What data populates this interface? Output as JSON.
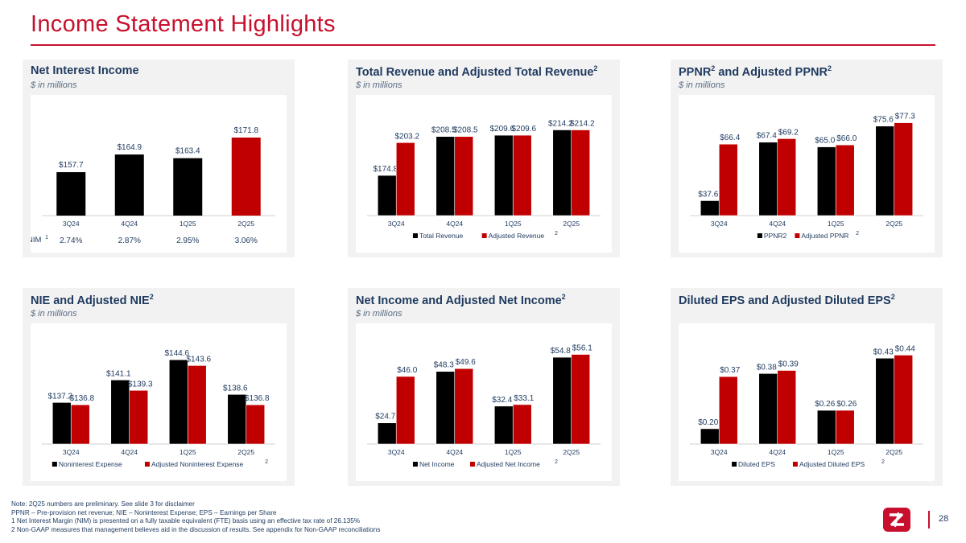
{
  "page": {
    "title": "Income Statement Highlights",
    "page_number": "28",
    "colors": {
      "accent": "#c8102e",
      "navy": "#1f3a5f",
      "black": "#000000",
      "red": "#c00000"
    }
  },
  "panels": [
    {
      "title": "Net Interest Income",
      "sup": "",
      "subtitle": "$ in millions"
    },
    {
      "title": "Total Revenue and Adjusted Total Revenue",
      "sup": "2",
      "subtitle": "$ in millions"
    },
    {
      "title": "PPNR",
      "sup": "2",
      "title_rest": " and Adjusted PPNR",
      "sup2": "2",
      "subtitle": "$ in millions"
    },
    {
      "title": "NIE and Adjusted NIE",
      "sup": "2",
      "subtitle": "$ in millions"
    },
    {
      "title": "Net Income and Adjusted Net Income",
      "sup": "2",
      "subtitle": "$ in millions"
    },
    {
      "title": "Diluted EPS and Adjusted Diluted EPS",
      "sup": "2",
      "subtitle": ""
    }
  ],
  "chart_data": [
    {
      "type": "bar",
      "categories": [
        "3Q24",
        "4Q24",
        "1Q25",
        "2Q25"
      ],
      "series": [
        {
          "name": "Net Interest Income",
          "values": [
            157.7,
            164.9,
            163.4,
            171.8
          ],
          "labels": [
            "$157.7",
            "$164.9",
            "$163.4",
            "$171.8"
          ],
          "colors": [
            "#000000",
            "#000000",
            "#000000",
            "#c00000"
          ]
        }
      ],
      "ylim": [
        140,
        180
      ],
      "nim_label": "NIM",
      "nim_sup": "1",
      "nim_values": [
        "2.74%",
        "2.87%",
        "2.95%",
        "3.06%"
      ],
      "legend": []
    },
    {
      "type": "bar",
      "categories": [
        "3Q24",
        "4Q24",
        "1Q25",
        "2Q25"
      ],
      "series": [
        {
          "name": "Total Revenue",
          "values": [
            174.8,
            208.5,
            209.6,
            214.2
          ],
          "labels": [
            "$174.8",
            "$208.5",
            "$209.6",
            "$214.2"
          ]
        },
        {
          "name": "Adjusted Revenue",
          "values": [
            203.2,
            208.5,
            209.6,
            214.2
          ],
          "labels": [
            "$203.2",
            "$208.5",
            "$209.6",
            "$214.2"
          ]
        }
      ],
      "ylim": [
        140,
        225
      ],
      "legend": [
        "Total Revenue",
        "Adjusted Revenue"
      ],
      "legend_sup": "2"
    },
    {
      "type": "bar",
      "categories": [
        "3Q24",
        "4Q24",
        "1Q25",
        "2Q25"
      ],
      "series": [
        {
          "name": "PPNR2",
          "values": [
            37.6,
            67.4,
            65.0,
            75.6
          ],
          "labels": [
            "$37.6",
            "$67.4",
            "$65.0",
            "$75.6"
          ]
        },
        {
          "name": "Adjusted PPNR",
          "values": [
            66.4,
            69.2,
            66.0,
            77.3
          ],
          "labels": [
            "$66.4",
            "$69.2",
            "$66.0",
            "$77.3"
          ]
        }
      ],
      "ylim": [
        30,
        80
      ],
      "legend": [
        "PPNR2",
        "Adjusted PPNR"
      ],
      "legend_sup": "2"
    },
    {
      "type": "bar",
      "categories": [
        "3Q24",
        "4Q24",
        "1Q25",
        "2Q25"
      ],
      "series": [
        {
          "name": "Noninterest Expense",
          "values": [
            137.2,
            141.1,
            144.6,
            138.6
          ],
          "labels": [
            "$137.2",
            "$141.1",
            "$144.6",
            "$138.6"
          ]
        },
        {
          "name": "Adjusted Noninterest Expense",
          "values": [
            136.8,
            139.3,
            143.6,
            136.8
          ],
          "labels": [
            "$136.8",
            "$139.3",
            "$143.6",
            "$136.8"
          ]
        }
      ],
      "ylim": [
        130,
        147
      ],
      "legend": [
        "Noninterest Expense",
        "Adjusted Noninterest Expense"
      ],
      "legend_sup": "2"
    },
    {
      "type": "bar",
      "categories": [
        "3Q24",
        "4Q24",
        "1Q25",
        "2Q25"
      ],
      "series": [
        {
          "name": "Net Income",
          "values": [
            24.7,
            48.3,
            32.4,
            54.8
          ],
          "labels": [
            "$24.7",
            "$48.3",
            "$32.4",
            "$54.8"
          ]
        },
        {
          "name": "Adjusted Net Income",
          "values": [
            46.0,
            49.6,
            33.1,
            56.1
          ],
          "labels": [
            "$46.0",
            "$49.6",
            "$33.1",
            "$56.1"
          ]
        }
      ],
      "ylim": [
        15,
        60
      ],
      "legend": [
        "Net Income",
        "Adjusted Net Income"
      ],
      "legend_sup": "2"
    },
    {
      "type": "bar",
      "categories": [
        "3Q24",
        "4Q24",
        "1Q25",
        "2Q25"
      ],
      "series": [
        {
          "name": "Diluted EPS",
          "values": [
            0.2,
            0.38,
            0.26,
            0.43
          ],
          "labels": [
            "$0.20",
            "$0.38",
            "$0.26",
            "$0.43"
          ]
        },
        {
          "name": "Adjusted Diluted EPS",
          "values": [
            0.37,
            0.39,
            0.26,
            0.44
          ],
          "labels": [
            "$0.37",
            "$0.39",
            "$0.26",
            "$0.44"
          ]
        }
      ],
      "ylim": [
        0.15,
        0.47
      ],
      "legend": [
        "Diluted EPS",
        "Adjusted Diluted EPS"
      ],
      "legend_sup": "2"
    }
  ],
  "footnotes": [
    "Note:  2Q25 numbers are preliminary. See slide 3 for disclaimer",
    "PPNR – Pre-provision net revenue; NIE – Noninterest Expense; EPS – Earnings per Share",
    "1   Net Interest Margin (NIM) is presented on a fully taxable equivalent (FTE) basis using an effective tax rate of 26.135%",
    "2   Non-GAAP measures that management believes aid in the discussion of results. See appendix for Non-GAAP reconciliations"
  ]
}
